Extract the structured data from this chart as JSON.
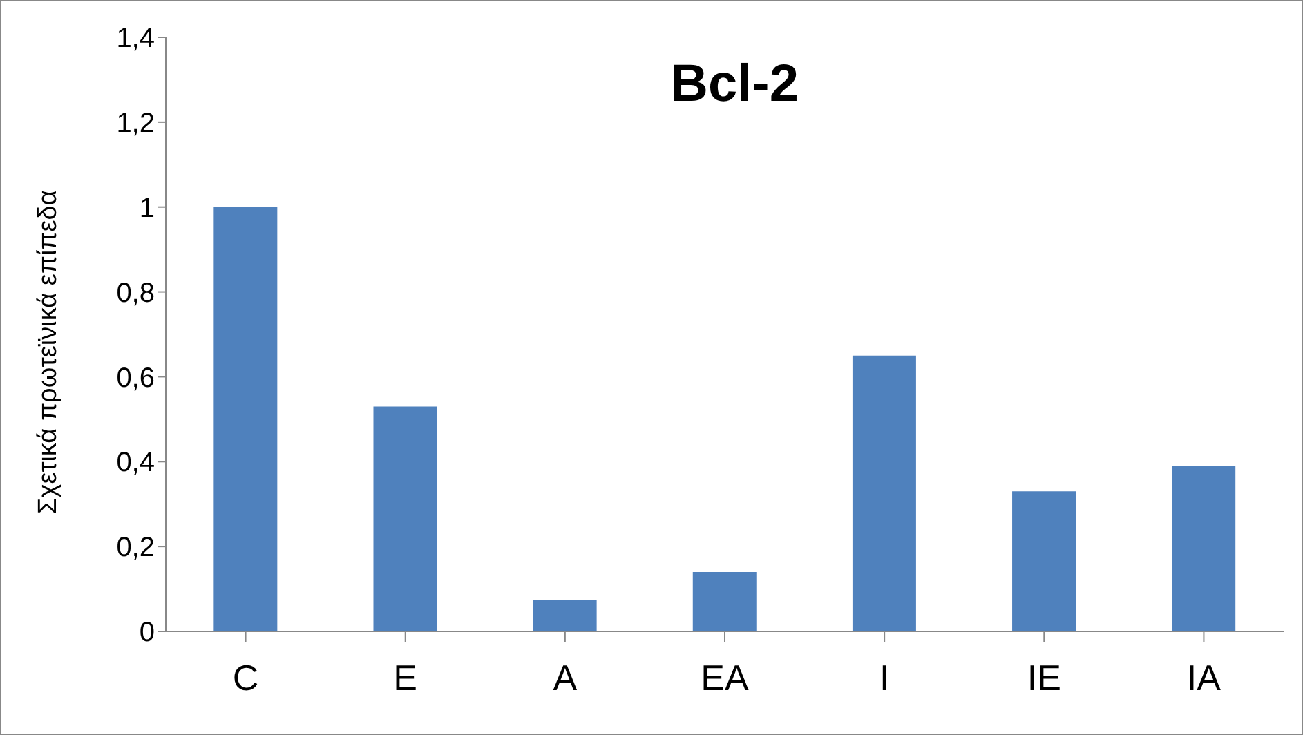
{
  "chart_data": {
    "type": "bar",
    "title": "Bcl-2",
    "ylabel": "Σχετικά πρωτεϊνικά επίπεδα",
    "categories": [
      "C",
      "E",
      "A",
      "EA",
      "I",
      "IE",
      "IA"
    ],
    "values": [
      1.0,
      0.53,
      0.075,
      0.14,
      0.65,
      0.33,
      0.39
    ],
    "color": "#4f81bd",
    "ylim": [
      0,
      1.4
    ],
    "yticks": [
      0,
      {
        "value": 0.2,
        "label": "0,2"
      },
      {
        "value": 0.4,
        "label": "0,4"
      },
      {
        "value": 0.6,
        "label": "0,6"
      },
      {
        "value": 0.8,
        "label": "0,8"
      },
      1,
      {
        "value": 1.2,
        "label": "1,2"
      },
      {
        "value": 1.4,
        "label": "1,4"
      }
    ],
    "grid": false,
    "legend": false
  }
}
